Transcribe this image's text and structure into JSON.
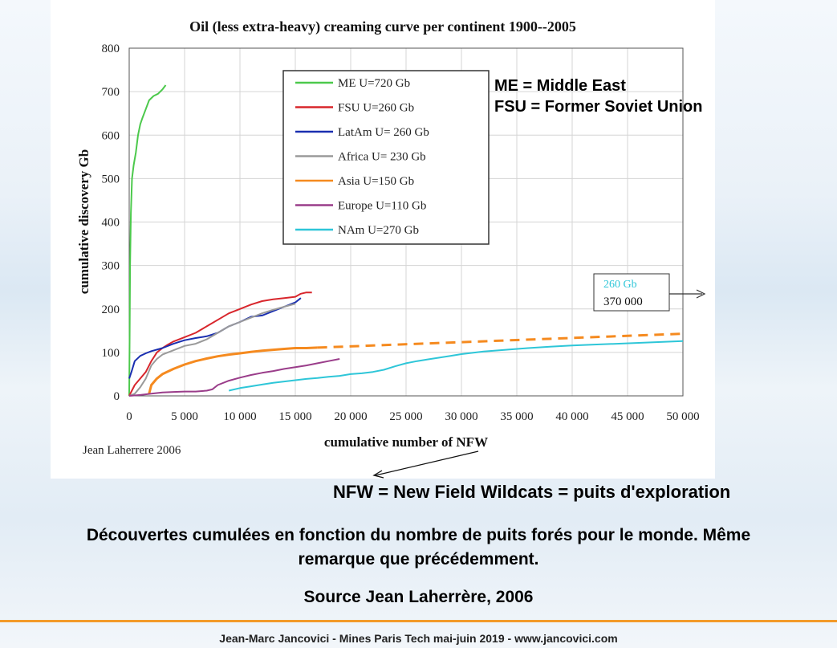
{
  "chart_data": {
    "type": "line",
    "title": "Oil (less extra-heavy) creaming curve per continent 1900--2005",
    "xlabel": "cumulative number of NFW",
    "ylabel": "cumulative discovery Gb",
    "xlim": [
      0,
      50000
    ],
    "ylim": [
      0,
      800
    ],
    "x_ticks": [
      0,
      5000,
      10000,
      15000,
      20000,
      25000,
      30000,
      35000,
      40000,
      45000,
      50000
    ],
    "x_tick_labels": [
      "0",
      "5 000",
      "10 000",
      "15 000",
      "20 000",
      "25 000",
      "30 000",
      "35 000",
      "40 000",
      "45 000",
      "50 000"
    ],
    "y_ticks": [
      0,
      100,
      200,
      300,
      400,
      500,
      600,
      700,
      800
    ],
    "y_tick_labels": [
      "0",
      "100",
      "200",
      "300",
      "400",
      "500",
      "600",
      "700",
      "800"
    ],
    "grid": true,
    "legend_position": "top-center",
    "series": [
      {
        "name": "ME U=720 Gb",
        "color": "#4cc94c",
        "x": [
          0,
          40,
          80,
          150,
          250,
          400,
          600,
          800,
          1000,
          1200,
          1500,
          1800,
          2200,
          2600,
          3000,
          3300
        ],
        "y": [
          0,
          150,
          300,
          420,
          500,
          530,
          560,
          600,
          625,
          640,
          660,
          680,
          690,
          695,
          705,
          715
        ]
      },
      {
        "name": "FSU U=260 Gb",
        "color": "#d8262c",
        "x": [
          0,
          500,
          1000,
          1500,
          2000,
          2500,
          3000,
          3500,
          4000,
          5000,
          6000,
          7000,
          8000,
          9000,
          10000,
          11000,
          12000,
          13000,
          14000,
          15000,
          15500,
          16000,
          16500
        ],
        "y": [
          0,
          25,
          40,
          55,
          80,
          100,
          110,
          118,
          125,
          135,
          145,
          160,
          175,
          190,
          200,
          210,
          218,
          222,
          225,
          228,
          235,
          238,
          238
        ]
      },
      {
        "name": "LatAm U= 260 Gb",
        "color": "#1a2fb0",
        "x": [
          0,
          200,
          500,
          1000,
          1500,
          2000,
          3000,
          4000,
          5000,
          6000,
          7000,
          8000,
          9000,
          10000,
          11000,
          12000,
          13000,
          14000,
          15000,
          15500
        ],
        "y": [
          40,
          55,
          80,
          92,
          98,
          103,
          110,
          120,
          128,
          133,
          137,
          145,
          160,
          170,
          182,
          185,
          195,
          205,
          215,
          225
        ]
      },
      {
        "name": "Africa U= 230 Gb",
        "color": "#9a9a9a",
        "x": [
          0,
          500,
          1000,
          1500,
          2000,
          2500,
          3000,
          4000,
          5000,
          6000,
          7000,
          8000,
          9000,
          10000,
          11000,
          12000,
          13000,
          14000,
          15000
        ],
        "y": [
          0,
          5,
          20,
          40,
          70,
          85,
          95,
          105,
          115,
          120,
          130,
          145,
          160,
          170,
          180,
          190,
          198,
          205,
          212
        ]
      },
      {
        "name": "Asia U=150 Gb",
        "color": "#f58a1f",
        "x": [
          1800,
          2000,
          2500,
          3000,
          4000,
          5000,
          6000,
          7000,
          8000,
          9000,
          10000,
          11000,
          12000,
          13000,
          14000,
          15000,
          16000,
          17000
        ],
        "y": [
          5,
          25,
          40,
          50,
          62,
          72,
          80,
          86,
          91,
          95,
          98,
          101,
          104,
          106,
          108,
          110,
          110,
          111
        ]
      },
      {
        "name": "Europe U=110 Gb",
        "color": "#9a3d8a",
        "x": [
          0,
          1000,
          2000,
          3000,
          4000,
          5000,
          6000,
          7000,
          7500,
          8000,
          9000,
          10000,
          11000,
          12000,
          13000,
          14000,
          15000,
          16000,
          17000,
          18000,
          19000
        ],
        "y": [
          0,
          2,
          5,
          8,
          9,
          10,
          10,
          12,
          15,
          25,
          35,
          42,
          48,
          53,
          57,
          62,
          66,
          70,
          75,
          80,
          85
        ]
      },
      {
        "name": "NAm U=270 Gb",
        "color": "#2ec6d8",
        "x": [
          9000,
          10000,
          11000,
          12000,
          13000,
          14000,
          15000,
          16000,
          17000,
          18000,
          19000,
          20000,
          21000,
          22000,
          23000,
          24000,
          25000,
          26000,
          27000,
          28000,
          29000,
          30000,
          32000,
          34000,
          36000,
          38000,
          40000,
          42000,
          44000,
          46000,
          48000,
          50000
        ],
        "y": [
          12,
          18,
          22,
          26,
          30,
          33,
          36,
          39,
          41,
          44,
          46,
          50,
          52,
          55,
          60,
          68,
          75,
          80,
          84,
          88,
          92,
          96,
          102,
          106,
          110,
          113,
          116,
          118,
          120,
          122,
          124,
          126
        ]
      }
    ],
    "extrapolation": {
      "color": "#f58a1f",
      "style": "dashed",
      "x": [
        17000,
        50000
      ],
      "y": [
        111,
        143
      ]
    },
    "annotations": {
      "source_label": "Jean Laherrere 2006",
      "offchart_box_line1": "260 Gb",
      "offchart_box_line1_color": "#2ec6d8",
      "offchart_box_line2": "370 000"
    }
  },
  "notes": {
    "abbrev_me": "ME = Middle East",
    "abbrev_fsu": "FSU = Former Soviet Union",
    "nfw": "NFW = New Field Wildcats = puits d'exploration"
  },
  "caption": {
    "line1": "Découvertes cumulées en fonction du nombre de puits forés pour le monde. Même",
    "line2": "remarque que précédemment."
  },
  "source": "Source Jean Laherrère, 2006",
  "footer": "Jean-Marc Jancovici - Mines Paris Tech mai-juin 2019 - www.jancovici.com",
  "colors": {
    "accent_rule": "#f39a2a"
  }
}
